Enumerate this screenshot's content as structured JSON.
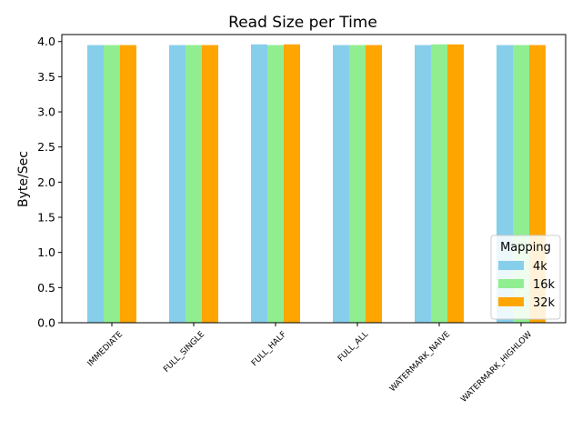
{
  "chart_data": {
    "type": "bar",
    "title": "Read Size per Time",
    "xlabel": "",
    "ylabel": "Byte/Sec",
    "ylim": [
      0,
      4.1
    ],
    "yticks": [
      "0.0",
      "0.5",
      "1.0",
      "1.5",
      "2.0",
      "2.5",
      "3.0",
      "3.5",
      "4.0"
    ],
    "grid": false,
    "categories": [
      "IMMEDIATE",
      "FULL_SINGLE",
      "FULL_HALF",
      "FULL_ALL",
      "WATERMARK_NAIVE",
      "WATERMARK_HIGHLOW"
    ],
    "series": [
      {
        "name": "4k",
        "color": "#87ceeb",
        "values": [
          3.95,
          3.95,
          3.96,
          3.95,
          3.95,
          3.95
        ]
      },
      {
        "name": "16k",
        "color": "#90ee90",
        "values": [
          3.95,
          3.95,
          3.95,
          3.95,
          3.96,
          3.95
        ]
      },
      {
        "name": "32k",
        "color": "#ffa500",
        "values": [
          3.95,
          3.95,
          3.96,
          3.95,
          3.96,
          3.95
        ]
      }
    ],
    "legend": {
      "title": "Mapping",
      "position": "lower-right"
    }
  }
}
